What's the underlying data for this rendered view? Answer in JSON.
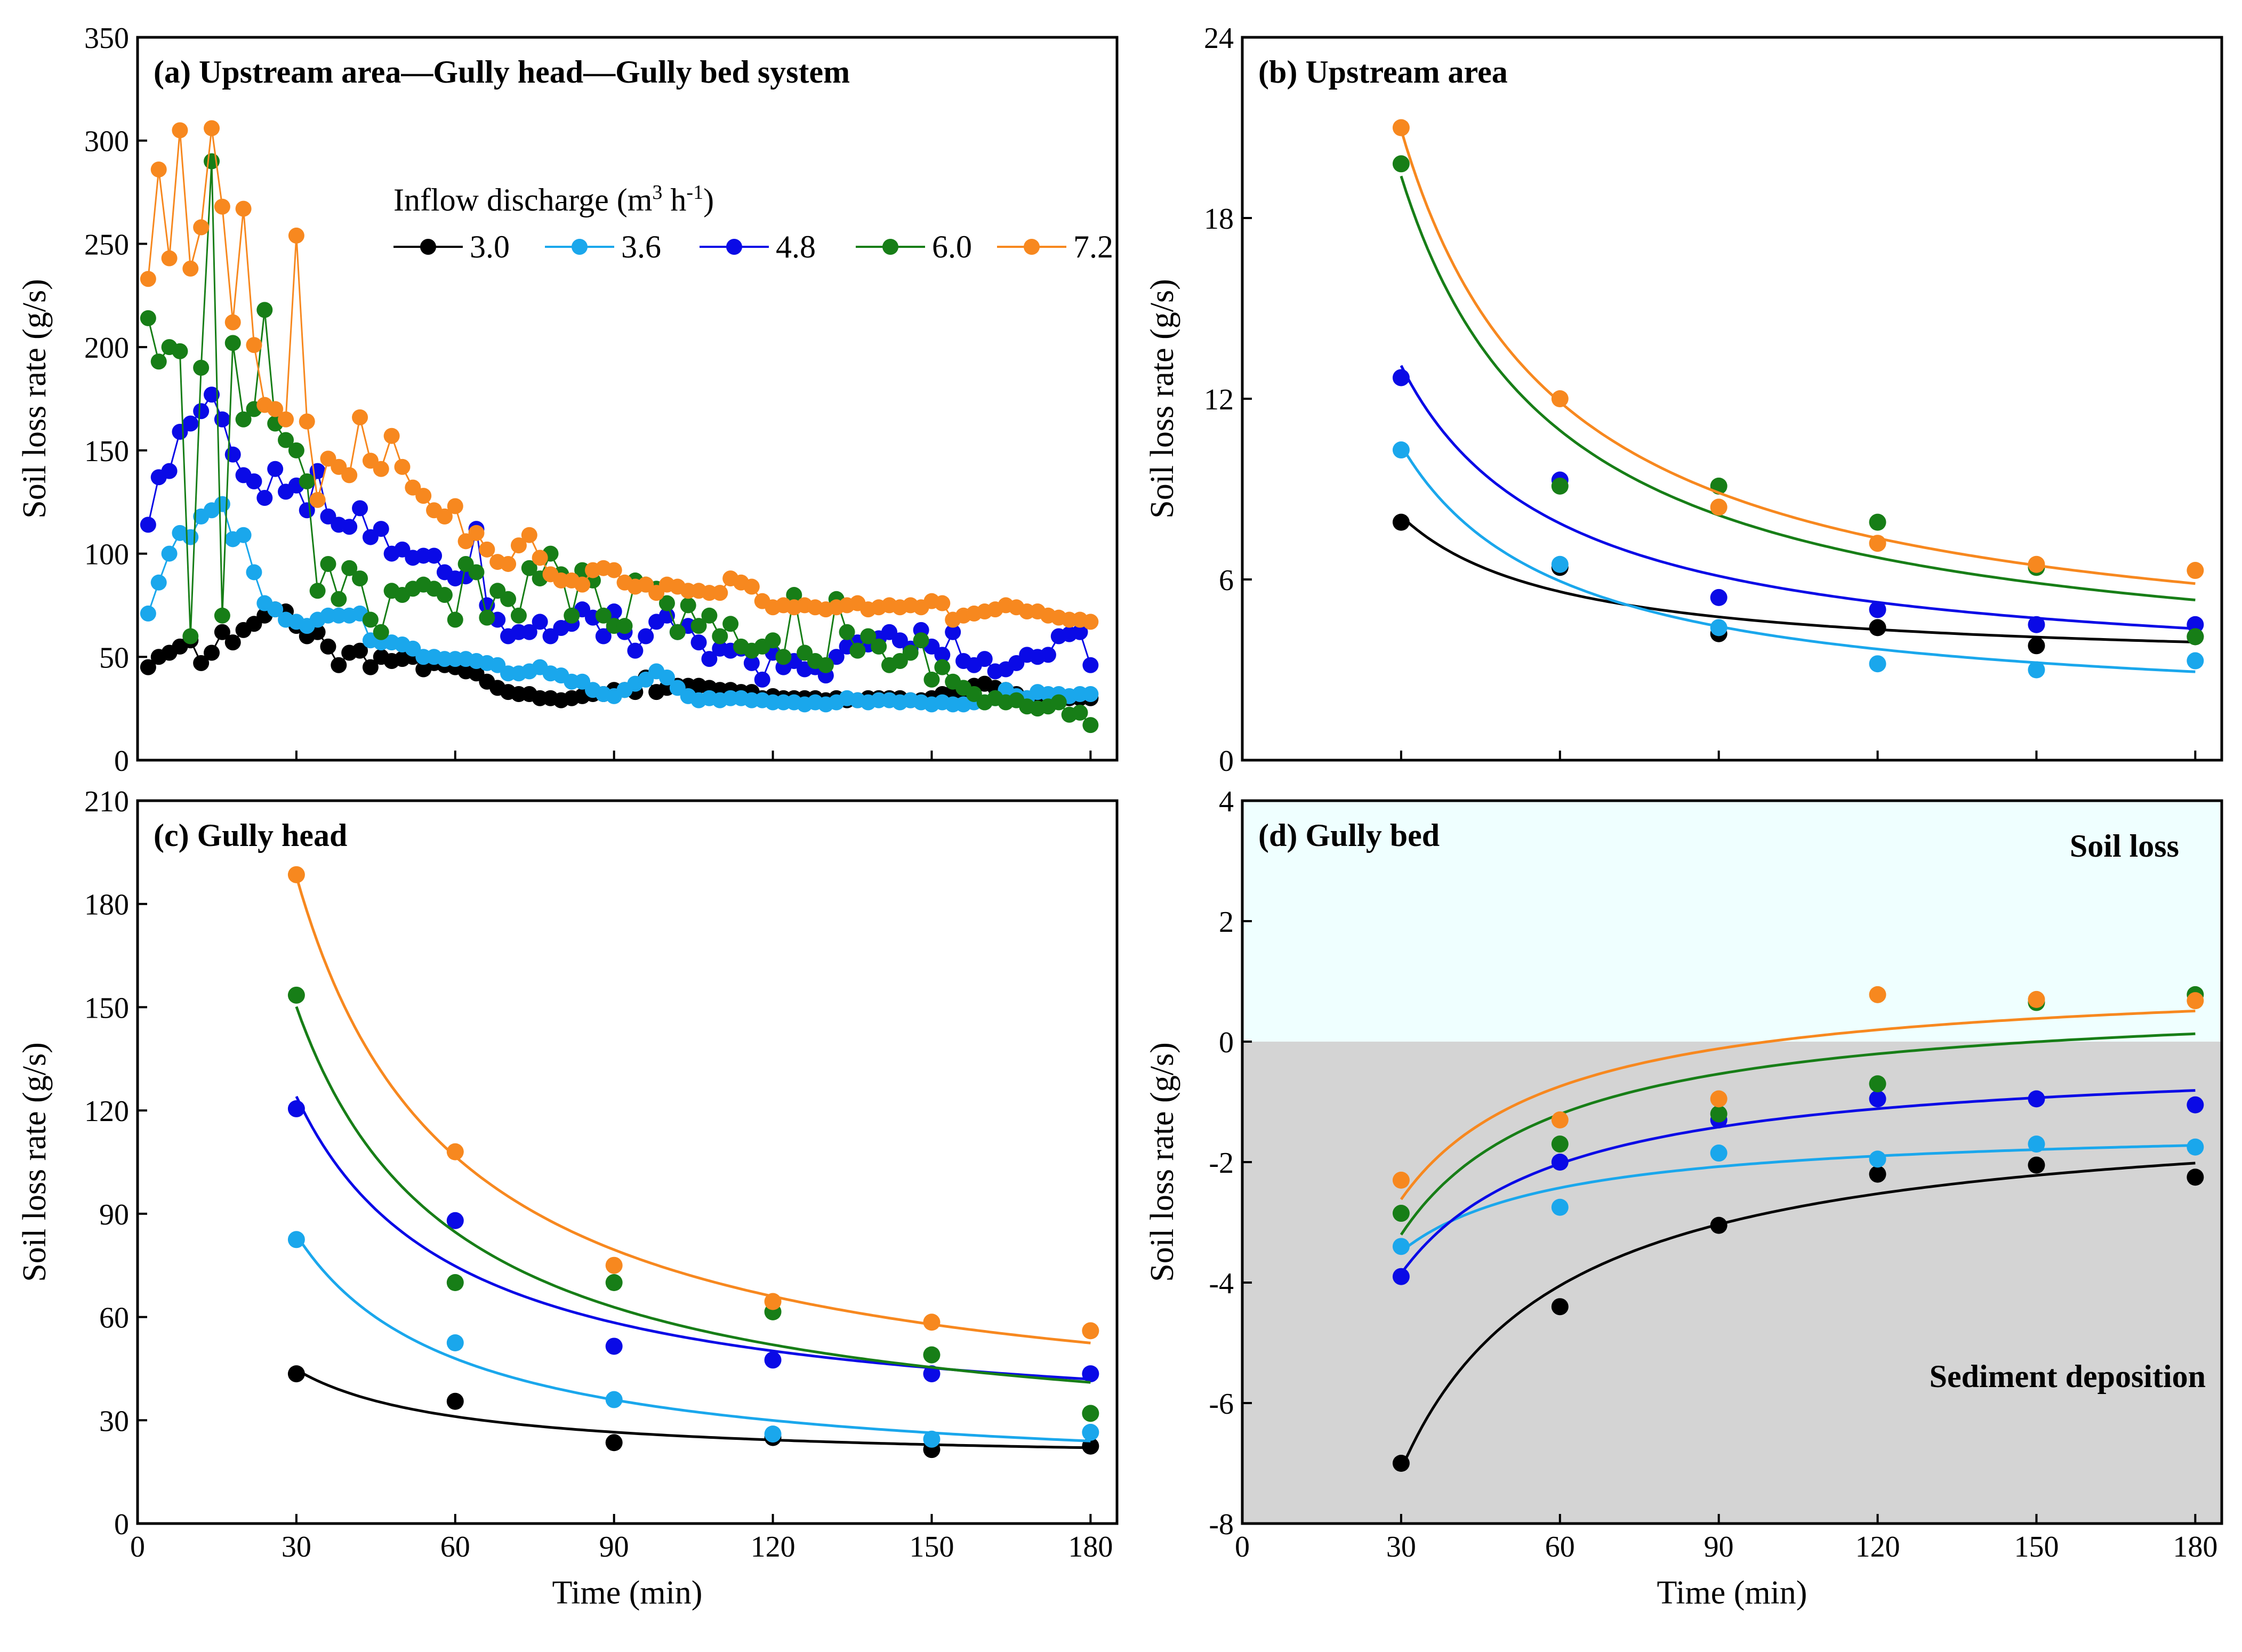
{
  "colors": {
    "3.0": "#000000",
    "3.6": "#1aa7ec",
    "4.8": "#0a0ae6",
    "6.0": "#177e17",
    "7.2": "#f7881f",
    "soil_loss_bg": "#efffff",
    "deposition_bg": "#d4d4d4"
  },
  "legend": {
    "title_prefix": "Inflow discharge (m",
    "title_sup1": "3",
    "title_mid": " h",
    "title_sup2": "-1",
    "title_suffix": ")",
    "items": [
      "3.0",
      "3.6",
      "4.8",
      "6.0",
      "7.2"
    ]
  },
  "chart_data": [
    {
      "id": "a",
      "type": "scatter",
      "title": "(a)  Upstream area—Gully head—Gully bed system",
      "xlabel": "",
      "ylabel": "Soil loss rate (g/s)",
      "xlim": [
        0,
        185
      ],
      "ylim": [
        0,
        350
      ],
      "xticks": [
        0,
        30,
        60,
        90,
        120,
        150,
        180
      ],
      "yticks": [
        0,
        50,
        100,
        150,
        200,
        250,
        300,
        350
      ],
      "x_start": 2,
      "x_step": 2,
      "connected": true,
      "series": [
        {
          "name": "3.0",
          "values": [
            45,
            50,
            52,
            55,
            58,
            47,
            52,
            62,
            57,
            63,
            66,
            70,
            73,
            72,
            65,
            60,
            62,
            55,
            46,
            52,
            53,
            45,
            50,
            48,
            49,
            50,
            44,
            47,
            46,
            45,
            43,
            42,
            38,
            35,
            33,
            32,
            32,
            30,
            30,
            29,
            30,
            31,
            32,
            32,
            34,
            34,
            33,
            40,
            33,
            35,
            36,
            36,
            36,
            35,
            34,
            34,
            33,
            33,
            30,
            31,
            30,
            30,
            30,
            30,
            29,
            30,
            29,
            29,
            30,
            30,
            30,
            30,
            29,
            29,
            30,
            32,
            33,
            33,
            36,
            37,
            35,
            34,
            32,
            30,
            27,
            29,
            30,
            30,
            30,
            30
          ]
        },
        {
          "name": "3.6",
          "values": [
            71,
            86,
            100,
            110,
            108,
            118,
            121,
            124,
            107,
            109,
            91,
            76,
            73,
            68,
            67,
            65,
            68,
            70,
            70,
            70,
            71,
            58,
            57,
            57,
            56,
            54,
            50,
            50,
            49,
            49,
            49,
            48,
            47,
            46,
            42,
            42,
            43,
            45,
            42,
            41,
            38,
            38,
            34,
            32,
            31,
            34,
            37,
            39,
            43,
            40,
            35,
            31,
            29,
            30,
            29,
            30,
            30,
            29,
            29,
            28,
            28,
            28,
            27,
            28,
            27,
            28,
            30,
            29,
            28,
            29,
            29,
            28,
            29,
            28,
            27,
            28,
            27,
            27,
            28,
            28,
            30,
            34,
            31,
            30,
            33,
            32,
            32,
            31,
            32,
            32
          ]
        },
        {
          "name": "4.8",
          "values": [
            114,
            137,
            140,
            159,
            163,
            169,
            177,
            165,
            148,
            138,
            135,
            127,
            141,
            130,
            133,
            121,
            140,
            118,
            114,
            113,
            122,
            108,
            112,
            100,
            102,
            98,
            99,
            99,
            91,
            88,
            89,
            112,
            75,
            68,
            60,
            62,
            62,
            67,
            60,
            64,
            66,
            73,
            69,
            60,
            72,
            62,
            53,
            60,
            67,
            70,
            62,
            65,
            57,
            49,
            54,
            53,
            54,
            47,
            39,
            52,
            45,
            48,
            44,
            45,
            41,
            50,
            55,
            57,
            56,
            59,
            62,
            58,
            54,
            63,
            55,
            51,
            62,
            48,
            46,
            49,
            43,
            44,
            47,
            51,
            50,
            51,
            60,
            61,
            62,
            46
          ]
        },
        {
          "name": "6.0",
          "values": [
            214,
            193,
            200,
            198,
            60,
            190,
            290,
            70,
            202,
            165,
            170,
            218,
            163,
            155,
            150,
            135,
            82,
            95,
            78,
            93,
            88,
            68,
            62,
            82,
            80,
            83,
            85,
            83,
            80,
            68,
            95,
            91,
            69,
            82,
            78,
            70,
            93,
            88,
            100,
            90,
            70,
            92,
            87,
            70,
            65,
            65,
            87,
            85,
            83,
            76,
            62,
            75,
            65,
            70,
            60,
            66,
            55,
            53,
            55,
            58,
            50,
            80,
            52,
            48,
            46,
            78,
            62,
            53,
            60,
            55,
            46,
            48,
            52,
            58,
            39,
            45,
            38,
            35,
            32,
            28,
            30,
            28,
            29,
            26,
            25,
            26,
            28,
            22,
            23,
            17
          ]
        },
        {
          "name": "7.2",
          "values": [
            233,
            286,
            243,
            305,
            238,
            258,
            306,
            268,
            212,
            267,
            201,
            172,
            170,
            165,
            254,
            164,
            126,
            146,
            142,
            138,
            166,
            145,
            141,
            157,
            142,
            132,
            128,
            121,
            118,
            123,
            106,
            110,
            102,
            96,
            95,
            104,
            109,
            98,
            90,
            87,
            87,
            85,
            92,
            93,
            92,
            86,
            84,
            85,
            81,
            85,
            84,
            82,
            82,
            81,
            81,
            88,
            86,
            84,
            77,
            74,
            75,
            74,
            75,
            74,
            73,
            74,
            75,
            76,
            73,
            74,
            75,
            74,
            75,
            74,
            77,
            76,
            68,
            70,
            71,
            72,
            73,
            75,
            74,
            72,
            72,
            70,
            69,
            68,
            68,
            67
          ]
        }
      ]
    },
    {
      "id": "b",
      "type": "scatter",
      "title": "(b)  Upstream area",
      "xlabel": "",
      "ylabel": "Soil loss rate (g/s)",
      "xlim": [
        0,
        185
      ],
      "ylim": [
        0,
        24
      ],
      "xticks": [
        30,
        60,
        90,
        120,
        150,
        180
      ],
      "yticks": [
        0,
        6,
        12,
        18,
        24
      ],
      "x": [
        30,
        60,
        90,
        120,
        150,
        180
      ],
      "series": [
        {
          "name": "3.0",
          "values": [
            7.9,
            6.4,
            4.2,
            4.4,
            3.8,
            4.1
          ]
        },
        {
          "name": "3.6",
          "values": [
            10.3,
            6.5,
            4.4,
            3.2,
            3.0,
            3.3
          ]
        },
        {
          "name": "4.8",
          "values": [
            12.7,
            9.3,
            5.4,
            5.0,
            4.5,
            4.5
          ]
        },
        {
          "name": "6.0",
          "values": [
            19.8,
            9.1,
            9.1,
            7.9,
            6.4,
            4.1
          ]
        },
        {
          "name": "7.2",
          "values": [
            21.0,
            12.0,
            8.4,
            7.2,
            6.5,
            6.3
          ]
        }
      ]
    },
    {
      "id": "c",
      "type": "scatter",
      "title": "(c) Gully head",
      "xlabel": "Time (min)",
      "ylabel": "Soil loss rate (g/s)",
      "xlim": [
        0,
        185
      ],
      "ylim": [
        0,
        210
      ],
      "xticks": [
        0,
        30,
        60,
        90,
        120,
        150,
        180
      ],
      "yticks": [
        0,
        30,
        60,
        90,
        120,
        150,
        180,
        210
      ],
      "x": [
        30,
        60,
        90,
        120,
        150,
        180
      ],
      "series": [
        {
          "name": "3.0",
          "values": [
            43.5,
            35.5,
            23.5,
            25.0,
            21.5,
            22.5
          ]
        },
        {
          "name": "3.6",
          "values": [
            82.5,
            52.5,
            36.0,
            26.0,
            24.5,
            26.5
          ]
        },
        {
          "name": "4.8",
          "values": [
            120.5,
            88.0,
            51.5,
            47.5,
            43.5,
            43.5
          ]
        },
        {
          "name": "6.0",
          "values": [
            153.5,
            70.0,
            70.0,
            61.5,
            49.0,
            32.0
          ]
        },
        {
          "name": "7.2",
          "values": [
            188.5,
            108.0,
            75.0,
            64.5,
            58.5,
            56.0
          ]
        }
      ]
    },
    {
      "id": "d",
      "type": "scatter",
      "title": "(d) Gully bed",
      "xlabel": "Time (min)",
      "ylabel": "Soil loss rate (g/s)",
      "xlim": [
        0,
        185
      ],
      "ylim": [
        -8,
        4
      ],
      "xticks": [
        0,
        30,
        60,
        90,
        120,
        150,
        180
      ],
      "yticks": [
        -8,
        -6,
        -4,
        -2,
        0,
        2,
        4
      ],
      "x": [
        30,
        60,
        90,
        120,
        150,
        180
      ],
      "annotations": [
        "Soil loss",
        "Sediment deposition"
      ],
      "series": [
        {
          "name": "3.0",
          "values": [
            -7.0,
            -4.4,
            -3.05,
            -2.2,
            -2.05,
            -2.25
          ]
        },
        {
          "name": "3.6",
          "values": [
            -3.4,
            -2.75,
            -1.85,
            -1.95,
            -1.7,
            -1.75
          ]
        },
        {
          "name": "4.8",
          "values": [
            -3.9,
            -2.0,
            -1.3,
            -0.95,
            -0.95,
            -1.05
          ]
        },
        {
          "name": "6.0",
          "values": [
            -2.85,
            -1.7,
            -1.2,
            -0.7,
            0.65,
            0.78
          ]
        },
        {
          "name": "7.2",
          "values": [
            -2.3,
            -1.3,
            -0.95,
            0.78,
            0.7,
            0.68
          ]
        }
      ]
    }
  ]
}
